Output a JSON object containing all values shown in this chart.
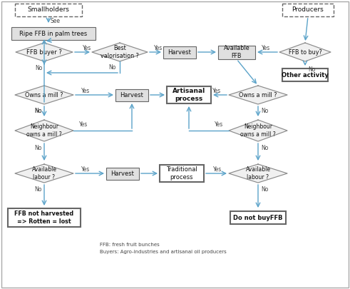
{
  "arrow_color": "#5ba3c9",
  "footnote1": "FFB: fresh fruit bunches",
  "footnote2": "Buyers: Agro-industries and artisanal oil producers",
  "smallholders_label": "Smallholders",
  "producers_label": "Producers"
}
